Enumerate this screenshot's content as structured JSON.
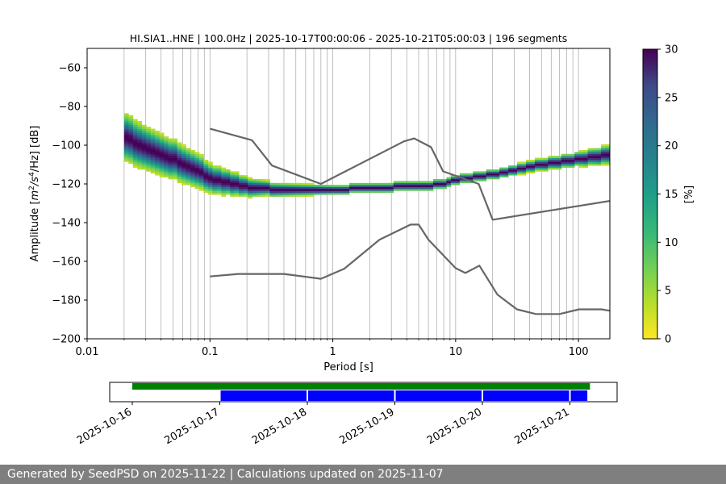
{
  "chart_data": [
    {
      "type": "heatmap",
      "title": "HI.SIA1..HNE | 100.0Hz | 2025-10-17T00:00:06 - 2025-10-21T05:00:03 | 196 segments",
      "xlabel": "Period [s]",
      "ylabel": "Amplitude [m²/s⁴/Hz] [dB]",
      "ylabel_parts": {
        "pre": "Amplitude [",
        "m": "m",
        "sq": "2",
        "mid": "/s",
        "fourth": "4",
        "post": "/Hz] [dB]"
      },
      "xscale": "log",
      "xlim": [
        0.01,
        180
      ],
      "ylim": [
        -200,
        -50
      ],
      "x_ticks": [
        0.01,
        0.1,
        1,
        10,
        100
      ],
      "x_tick_labels": [
        "0.01",
        "0.1",
        "1",
        "10",
        "100"
      ],
      "y_ticks": [
        -200,
        -180,
        -160,
        -140,
        -120,
        -100,
        -80,
        -60
      ],
      "y_tick_labels": [
        "−200",
        "−180",
        "−160",
        "−140",
        "−120",
        "−100",
        "−80",
        "−60"
      ],
      "grid": "vertical",
      "colormap": "viridis_r",
      "colorbar": {
        "label": "[%]",
        "range": [
          0,
          30
        ],
        "ticks": [
          0,
          5,
          10,
          15,
          20,
          25,
          30
        ],
        "tick_labels": [
          "0",
          "5",
          "10",
          "15",
          "20",
          "25",
          "30"
        ]
      },
      "density_ridge": {
        "periods": [
          0.02,
          0.03,
          0.05,
          0.08,
          0.1,
          0.15,
          0.2,
          0.3,
          0.5,
          1,
          2,
          3,
          5,
          8,
          10,
          20,
          50,
          100,
          180
        ],
        "mode_db": [
          -95,
          -102,
          -107,
          -113,
          -117,
          -120,
          -121.5,
          -122.5,
          -123,
          -123,
          -122,
          -121.5,
          -121,
          -120,
          -118,
          -115,
          -110,
          -107,
          -105
        ],
        "spread_db": [
          10,
          9,
          8,
          7,
          6,
          5,
          4,
          3,
          2.5,
          2,
          2,
          2,
          2,
          2,
          2,
          2,
          2.5,
          3,
          4
        ]
      },
      "series": [
        {
          "name": "",
          "x": [
            0.1,
            0.22,
            0.32,
            0.8,
            3.8,
            4.6,
            6.3,
            7.9,
            15.4,
            20.0,
            180
          ],
          "y": [
            -91.5,
            -97.4,
            -110.5,
            -120.0,
            -98.0,
            -96.5,
            -101.0,
            -113.5,
            -120.0,
            -138.5,
            -128.8
          ]
        },
        {
          "name": "",
          "x": [
            0.1,
            0.17,
            0.4,
            0.8,
            1.24,
            2.4,
            4.3,
            5.0,
            6.0,
            10.0,
            12.0,
            15.6,
            21.9,
            31.6,
            45.0,
            70.0,
            101.0,
            154.0,
            180
          ],
          "y": [
            -167.8,
            -166.5,
            -166.5,
            -169.0,
            -163.8,
            -148.8,
            -141.0,
            -141.0,
            -148.8,
            -163.5,
            -166.0,
            -162.2,
            -177.2,
            -184.8,
            -187.2,
            -187.2,
            -184.8,
            -184.8,
            -185.5
          ]
        }
      ]
    },
    {
      "type": "timeline",
      "x_tick_labels": [
        "2025-10-16",
        "2025-10-17",
        "2025-10-18",
        "2025-10-19",
        "2025-10-20",
        "2025-10-21"
      ],
      "available_data": [
        {
          "start": "2025-10-16T00:00",
          "end": "2025-10-21T05:30"
        }
      ],
      "psd_segments": [
        {
          "start": "2025-10-17T00:00",
          "end": "2025-10-18T00:00"
        },
        {
          "start": "2025-10-18T00:00",
          "end": "2025-10-19T00:00"
        },
        {
          "start": "2025-10-19T00:00",
          "end": "2025-10-20T00:00"
        },
        {
          "start": "2025-10-20T00:00",
          "end": "2025-10-21T00:00"
        },
        {
          "start": "2025-10-21T00:00",
          "end": "2025-10-21T05:00"
        }
      ],
      "colors": {
        "available": "#008000",
        "segments": "#0000ff"
      }
    }
  ],
  "footer": {
    "text": "Generated by SeedPSD on 2025-11-22 | Calculations updated on 2025-11-07"
  }
}
